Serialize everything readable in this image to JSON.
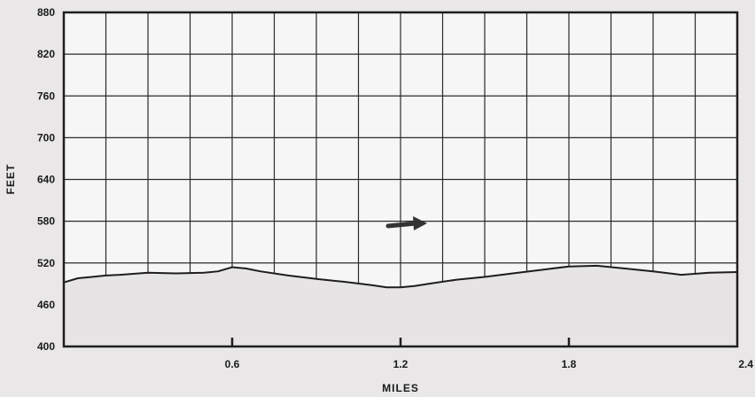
{
  "chart_data": {
    "type": "area",
    "xlabel": "MILES",
    "ylabel": "FEET",
    "xlim": [
      0,
      2.4
    ],
    "ylim": [
      400,
      880
    ],
    "x_ticks": [
      "0.6",
      "1.2",
      "1.8",
      "2.4"
    ],
    "y_ticks": [
      "880",
      "820",
      "760",
      "700",
      "640",
      "580",
      "520",
      "460",
      "400"
    ],
    "grid": true,
    "direction_arrow": "right",
    "series": [
      {
        "x": [
          0,
          0.05,
          0.1,
          0.15,
          0.2,
          0.3,
          0.4,
          0.5,
          0.55,
          0.6,
          0.65,
          0.7,
          0.8,
          0.9,
          1.0,
          1.1,
          1.15,
          1.2,
          1.25,
          1.3,
          1.4,
          1.5,
          1.6,
          1.7,
          1.8,
          1.9,
          2.0,
          2.1,
          2.2,
          2.3,
          2.4
        ],
        "y": [
          492,
          498,
          500,
          502,
          503,
          506,
          505,
          506,
          508,
          514,
          512,
          508,
          502,
          497,
          493,
          488,
          485,
          485,
          487,
          490,
          496,
          500,
          505,
          510,
          515,
          516,
          512,
          508,
          503,
          506,
          507
        ]
      }
    ]
  }
}
